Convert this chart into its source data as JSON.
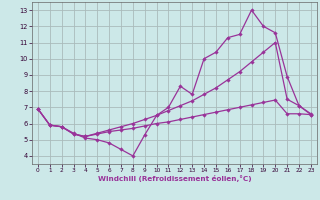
{
  "bg_color": "#cce8e8",
  "plot_bg": "#cce8e8",
  "grid_color": "#aabbbb",
  "line_color": "#993399",
  "xlabel": "Windchill (Refroidissement éolien,°C)",
  "xlim": [
    -0.5,
    23.5
  ],
  "ylim": [
    3.5,
    13.5
  ],
  "xticks": [
    0,
    1,
    2,
    3,
    4,
    5,
    6,
    7,
    8,
    9,
    10,
    11,
    12,
    13,
    14,
    15,
    16,
    17,
    18,
    19,
    20,
    21,
    22,
    23
  ],
  "yticks": [
    4,
    5,
    6,
    7,
    8,
    9,
    10,
    11,
    12,
    13
  ],
  "line1_x": [
    0,
    1,
    2,
    3,
    4,
    5,
    6,
    7,
    8,
    9,
    10,
    11,
    12,
    13,
    14,
    15,
    16,
    17,
    18,
    19,
    20,
    21,
    22,
    23
  ],
  "line1_y": [
    6.9,
    5.9,
    5.8,
    5.4,
    5.1,
    5.0,
    4.8,
    4.4,
    4.0,
    5.3,
    6.5,
    7.0,
    8.3,
    7.8,
    10.0,
    10.4,
    11.3,
    11.5,
    13.0,
    12.0,
    11.6,
    8.9,
    7.1,
    6.6
  ],
  "line2_x": [
    0,
    1,
    2,
    3,
    4,
    5,
    6,
    7,
    8,
    9,
    10,
    11,
    12,
    13,
    14,
    15,
    16,
    17,
    18,
    19,
    20,
    21,
    22,
    23
  ],
  "line2_y": [
    6.9,
    5.9,
    5.8,
    5.35,
    5.2,
    5.35,
    5.5,
    5.6,
    5.7,
    5.85,
    6.0,
    6.1,
    6.25,
    6.4,
    6.55,
    6.7,
    6.85,
    7.0,
    7.15,
    7.3,
    7.45,
    6.6,
    6.6,
    6.55
  ],
  "line3_x": [
    0,
    1,
    2,
    3,
    4,
    5,
    6,
    7,
    8,
    9,
    10,
    11,
    12,
    13,
    14,
    15,
    16,
    17,
    18,
    19,
    20,
    21,
    22,
    23
  ],
  "line3_y": [
    6.9,
    5.9,
    5.8,
    5.35,
    5.2,
    5.4,
    5.6,
    5.8,
    6.0,
    6.25,
    6.5,
    6.8,
    7.1,
    7.4,
    7.8,
    8.2,
    8.7,
    9.2,
    9.8,
    10.4,
    11.0,
    7.5,
    7.1,
    6.55
  ]
}
